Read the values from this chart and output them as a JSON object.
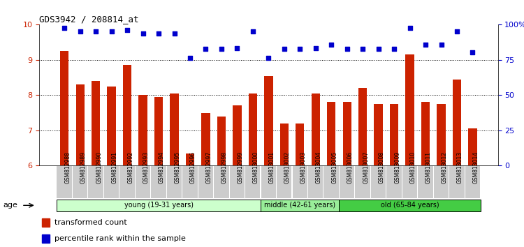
{
  "title": "GDS3942 / 208814_at",
  "samples": [
    "GSM812988",
    "GSM812989",
    "GSM812990",
    "GSM812991",
    "GSM812992",
    "GSM812993",
    "GSM812994",
    "GSM812995",
    "GSM812996",
    "GSM812997",
    "GSM812998",
    "GSM812999",
    "GSM813000",
    "GSM813001",
    "GSM813002",
    "GSM813003",
    "GSM813004",
    "GSM813005",
    "GSM813006",
    "GSM813007",
    "GSM813008",
    "GSM813009",
    "GSM813010",
    "GSM813011",
    "GSM813012",
    "GSM813013",
    "GSM813014"
  ],
  "bar_values": [
    9.25,
    8.3,
    8.4,
    8.25,
    8.85,
    8.0,
    7.95,
    8.05,
    6.35,
    7.5,
    7.4,
    7.7,
    8.05,
    8.55,
    7.2,
    7.2,
    8.05,
    7.8,
    7.8,
    8.2,
    7.75,
    7.75,
    9.15,
    7.8,
    7.75,
    8.45,
    7.05
  ],
  "percentile_values": [
    97.5,
    95.2,
    95.2,
    95.0,
    96.2,
    93.8,
    93.8,
    94.0,
    76.5,
    82.8,
    82.8,
    83.2,
    95.0,
    76.3,
    82.8,
    83.0,
    83.2,
    85.8,
    82.8,
    83.0,
    83.0,
    82.8,
    97.8,
    85.8,
    86.0,
    95.0,
    80.5
  ],
  "bar_color": "#cc2200",
  "dot_color": "#0000cc",
  "ylim_left": [
    6,
    10
  ],
  "ylim_right": [
    0,
    100
  ],
  "yticks_left": [
    6,
    7,
    8,
    9,
    10
  ],
  "yticks_right": [
    0,
    25,
    50,
    75,
    100
  ],
  "ytick_labels_right": [
    "0",
    "25",
    "50",
    "75",
    "100%"
  ],
  "groups": [
    {
      "label": "young (19-31 years)",
      "start": 0,
      "end": 13,
      "color": "#ccffcc"
    },
    {
      "label": "middle (42-61 years)",
      "start": 13,
      "end": 18,
      "color": "#99ee99"
    },
    {
      "label": "old (65-84 years)",
      "start": 18,
      "end": 27,
      "color": "#44cc44"
    }
  ],
  "legend_bar_label": "transformed count",
  "legend_dot_label": "percentile rank within the sample",
  "xlabel_age": "age"
}
